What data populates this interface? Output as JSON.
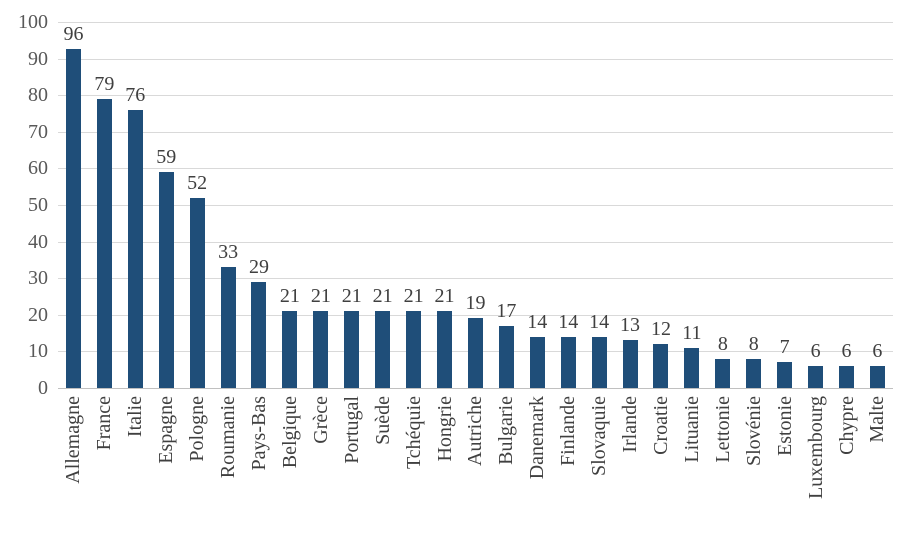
{
  "chart_data": {
    "type": "bar",
    "title": "",
    "xlabel": "",
    "ylabel": "",
    "categories": [
      "Allemagne",
      "France",
      "Italie",
      "Espagne",
      "Pologne",
      "Roumanie",
      "Pays-Bas",
      "Belgique",
      "Grèce",
      "Portugal",
      "Suède",
      "Tchéquie",
      "Hongrie",
      "Autriche",
      "Bulgarie",
      "Danemark",
      "Finlande",
      "Slovaquie",
      "Irlande",
      "Croatie",
      "Lituanie",
      "Lettonie",
      "Slovénie",
      "Estonie",
      "Luxembourg",
      "Chypre",
      "Malte"
    ],
    "values": [
      96,
      79,
      76,
      59,
      52,
      33,
      29,
      21,
      21,
      21,
      21,
      21,
      21,
      19,
      17,
      14,
      14,
      14,
      13,
      12,
      11,
      8,
      8,
      7,
      6,
      6,
      6
    ],
    "ylim": [
      0,
      100
    ],
    "yticks": [
      0,
      10,
      20,
      30,
      40,
      50,
      60,
      70,
      80,
      90,
      100
    ],
    "grid": true,
    "legend": false,
    "value_labels_shown": true,
    "category_label_rotation_degrees": -90,
    "colors": {
      "bar": "#1f4e79",
      "gridline": "#d9d9d9",
      "axis_line": "#c0c0c0",
      "tick_label": "#595959",
      "value_label": "#404040",
      "category_label": "#404040",
      "background": "#ffffff"
    }
  }
}
